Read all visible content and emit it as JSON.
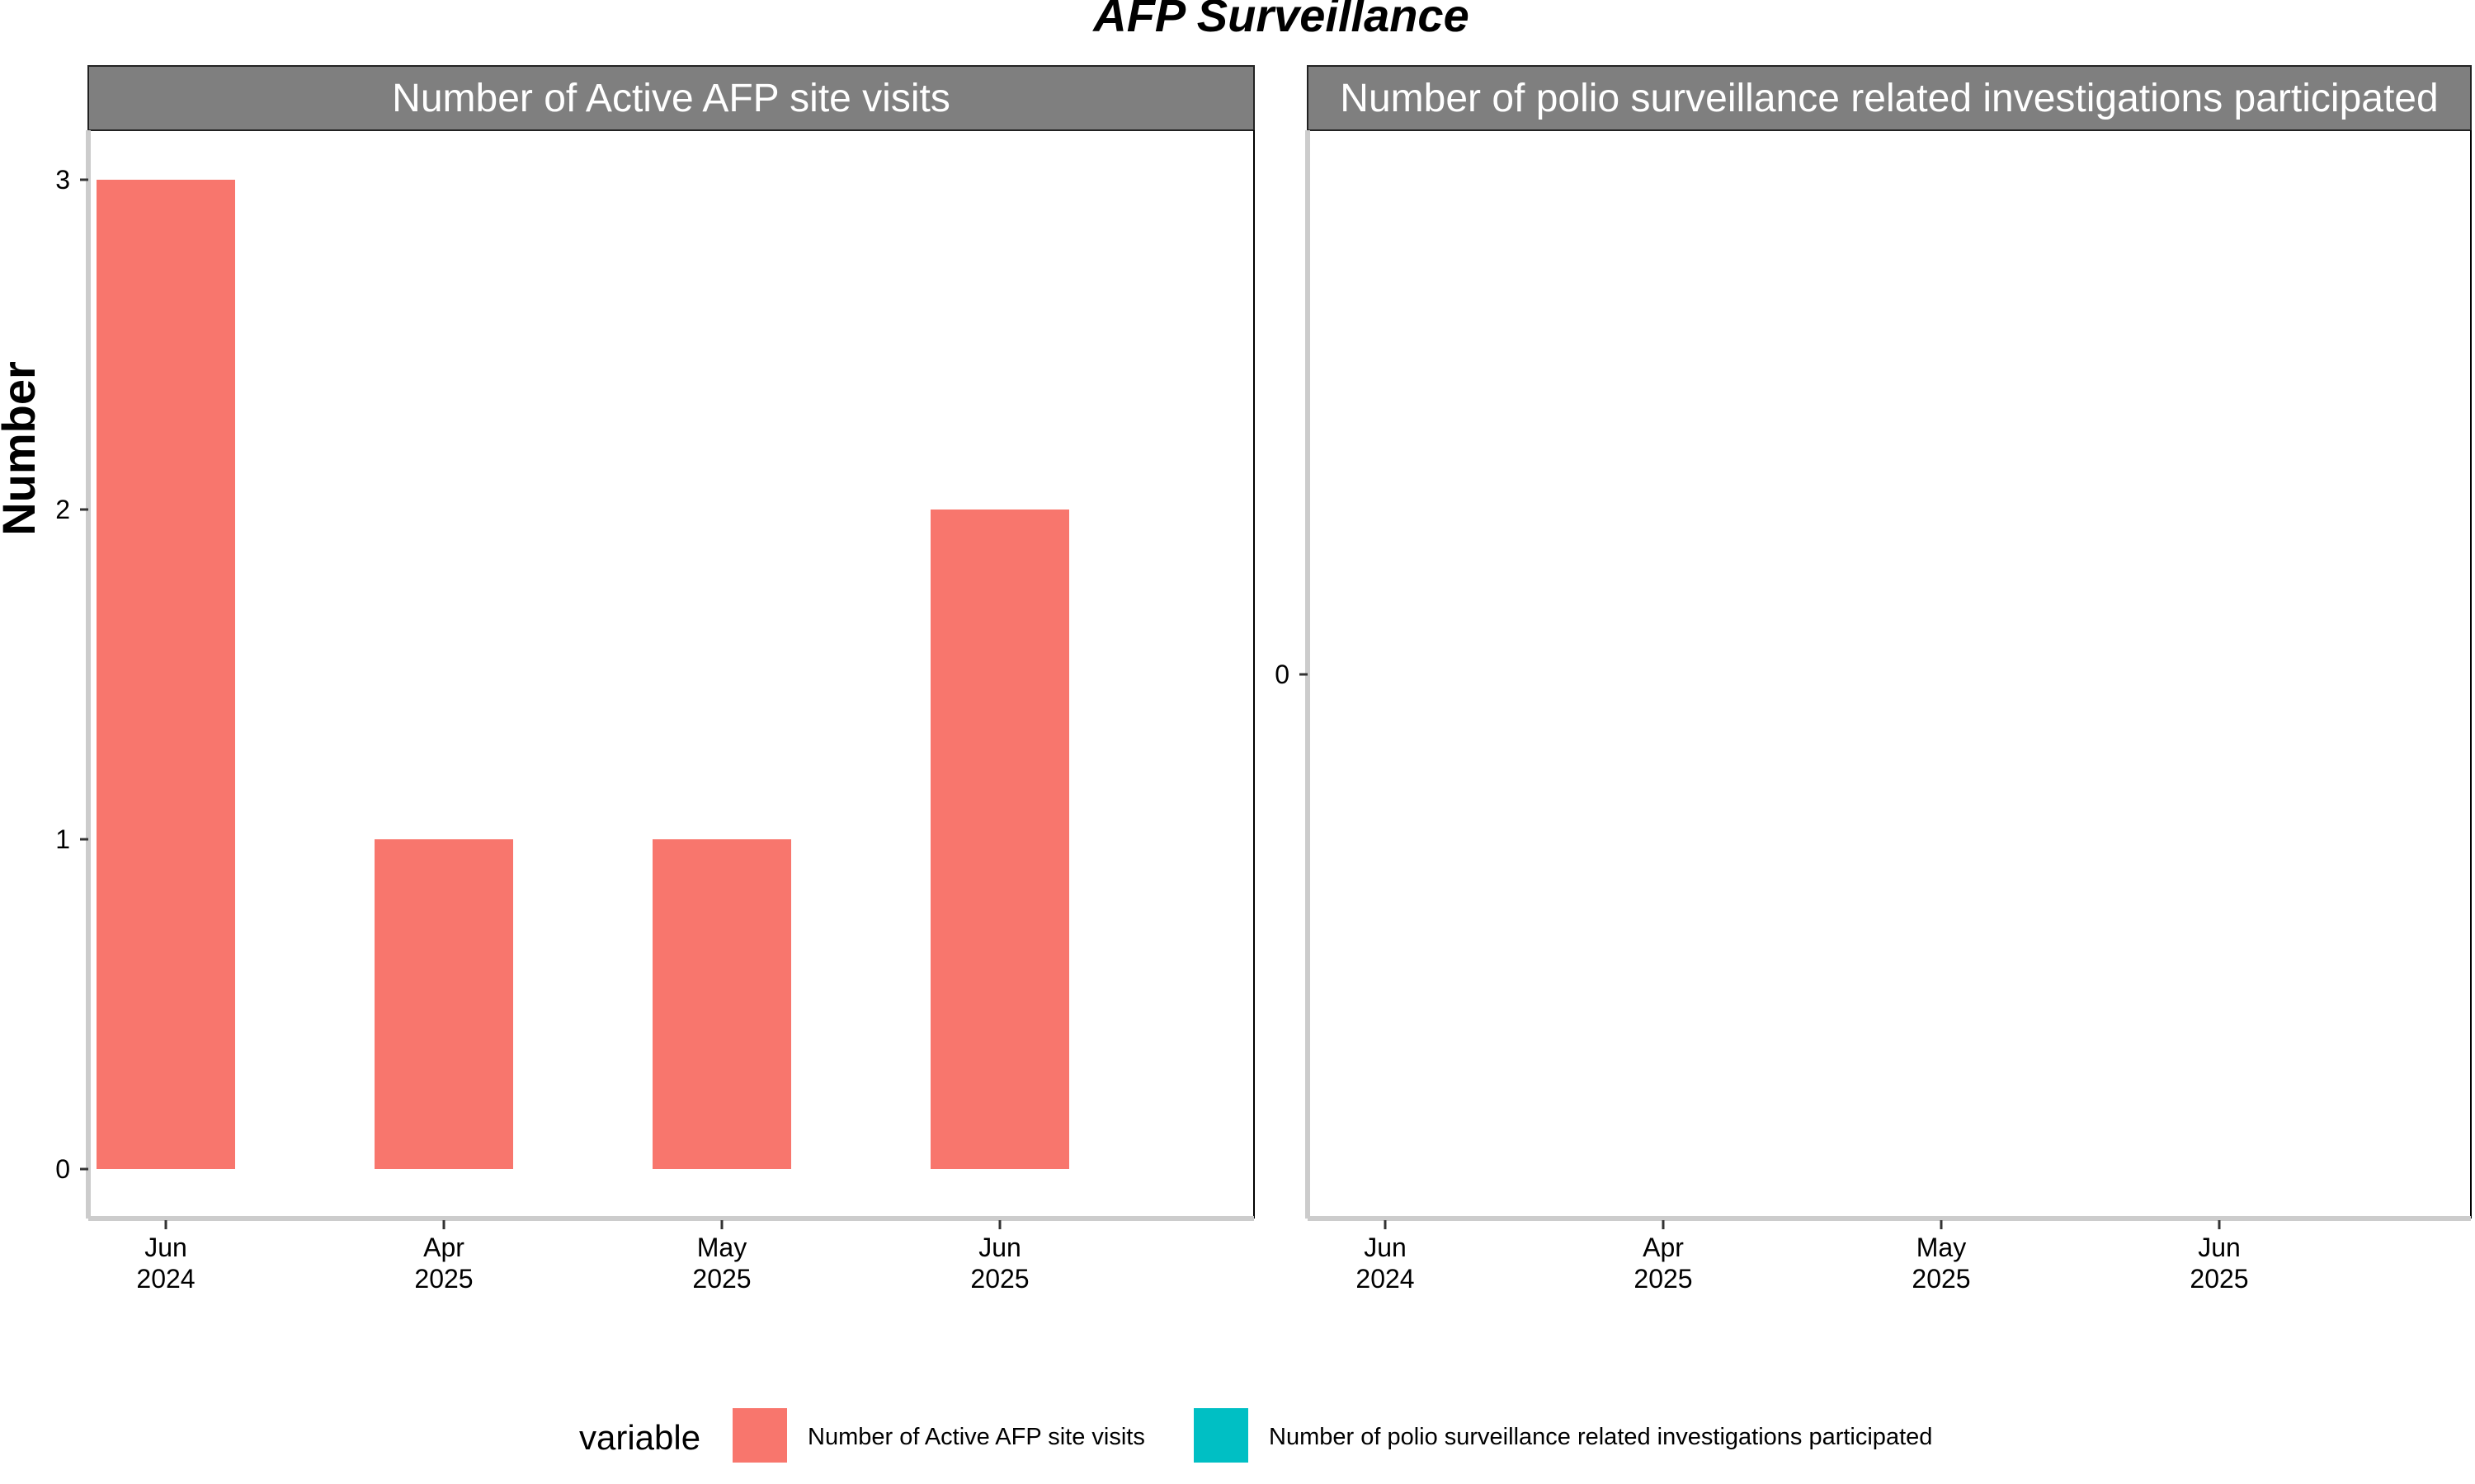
{
  "chart_data": {
    "type": "bar",
    "title": "AFP Surveillance",
    "ylabel": "Number",
    "xlabel": "",
    "categories": [
      "Jun\n2024",
      "Apr\n2025",
      "May\n2025",
      "Jun\n2025"
    ],
    "facets": [
      {
        "label": "Number of Active AFP site visits",
        "series_name": "Number of Active AFP site visits",
        "values": [
          3,
          1,
          1,
          2
        ],
        "yticks": [
          0,
          1,
          2,
          3
        ],
        "ylim": [
          -0.15,
          3.15
        ]
      },
      {
        "label": "Number of polio surveillance related investigations participated",
        "series_name": "Number of polio surveillance related investigations participated",
        "values": [],
        "yticks": [
          0
        ],
        "ylim": [
          -1,
          1
        ]
      }
    ],
    "legend": {
      "title": "variable",
      "position": "bottom",
      "items": [
        {
          "label": "Number of Active AFP site visits",
          "color": "#F8766D"
        },
        {
          "label": "Number of polio surveillance related investigations participated",
          "color": "#00BFC4"
        }
      ]
    },
    "colors": {
      "strip_background": "#7F7F7F",
      "axis_line": "#CCCCCC"
    },
    "grid": false
  }
}
